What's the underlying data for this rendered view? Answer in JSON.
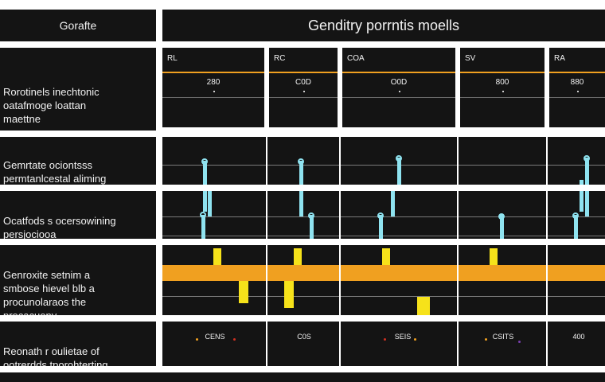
{
  "header": {
    "left_title": "Gorafte",
    "main_title": "Genditry porrntis moells"
  },
  "rows": [
    {
      "label": "Rorotinels inechtonic\noatafmoge loattan\nmaettne"
    },
    {
      "label": "Gemrtate ociontsss\npermtanlcestal aliming\nportottle"
    },
    {
      "label": "Ocatfods s ocersowining\npersjociooa"
    },
    {
      "label": "Genroxite setnim a\nsmbose hievel blb a\nprocunolaraos the\nprocacuony"
    },
    {
      "label": "Reonath r oulietae of\nootrerdds tporohterting"
    }
  ],
  "columns": [
    {
      "head": "RL",
      "value": "280",
      "bottom": "CENS"
    },
    {
      "head": "RC",
      "value": "C0D",
      "bottom": "C0S"
    },
    {
      "head": "COA",
      "value": "O0D",
      "bottom": "SEIS"
    },
    {
      "head": "SV",
      "value": "800",
      "bottom": "CSITS"
    },
    {
      "head": "RA",
      "value": "880",
      "bottom": "400"
    }
  ],
  "colors": {
    "background": "#141414",
    "accent_orange": "#f0a020",
    "accent_yellow": "#f6e21a",
    "accent_cyan": "#8fe3f0"
  }
}
